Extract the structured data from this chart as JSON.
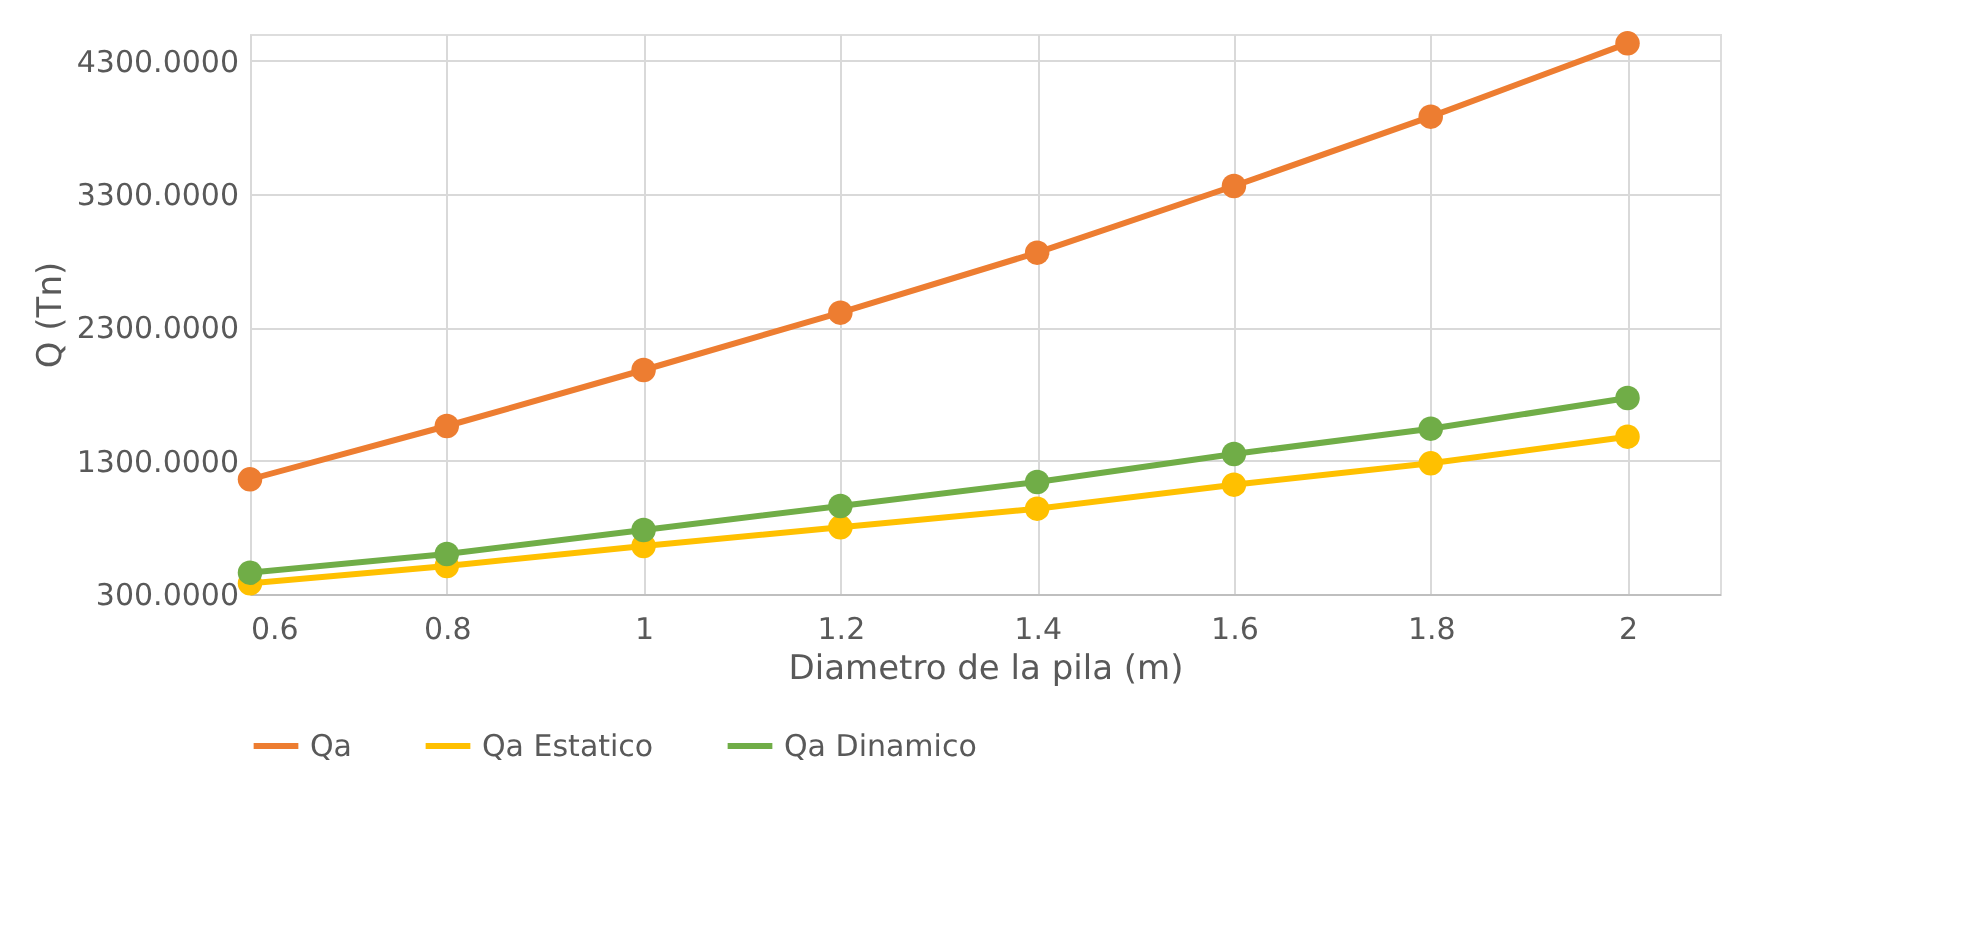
{
  "chart_data": {
    "type": "line",
    "xlabel": "Diametro de la pila (m)",
    "ylabel": "Q (Tn)",
    "categories": [
      "0.6",
      "0.8",
      "1",
      "1.2",
      "1.4",
      "1.6",
      "1.8",
      "2"
    ],
    "series": [
      {
        "name": "Qa",
        "color": "#ed7d31",
        "values": [
          1160,
          1560,
          1980,
          2410,
          2860,
          3360,
          3880,
          4430
        ]
      },
      {
        "name": "Qa Estatico",
        "color": "#ffc000",
        "values": [
          380,
          510,
          660,
          800,
          940,
          1120,
          1280,
          1480
        ]
      },
      {
        "name": "Qa Dinamico",
        "color": "#70ad47",
        "values": [
          460,
          600,
          780,
          960,
          1140,
          1350,
          1540,
          1770
        ]
      }
    ],
    "ylim": [
      300,
      4500
    ],
    "yticks": [
      {
        "value": 300,
        "label": "300.0000"
      },
      {
        "value": 1300,
        "label": "1300.0000"
      },
      {
        "value": 2300,
        "label": "2300.0000"
      },
      {
        "value": 3300,
        "label": "3300.0000"
      },
      {
        "value": 4300,
        "label": "4300.0000"
      }
    ],
    "grid": true,
    "legend": "bottom",
    "marker": "circle",
    "line_style": "solid"
  }
}
